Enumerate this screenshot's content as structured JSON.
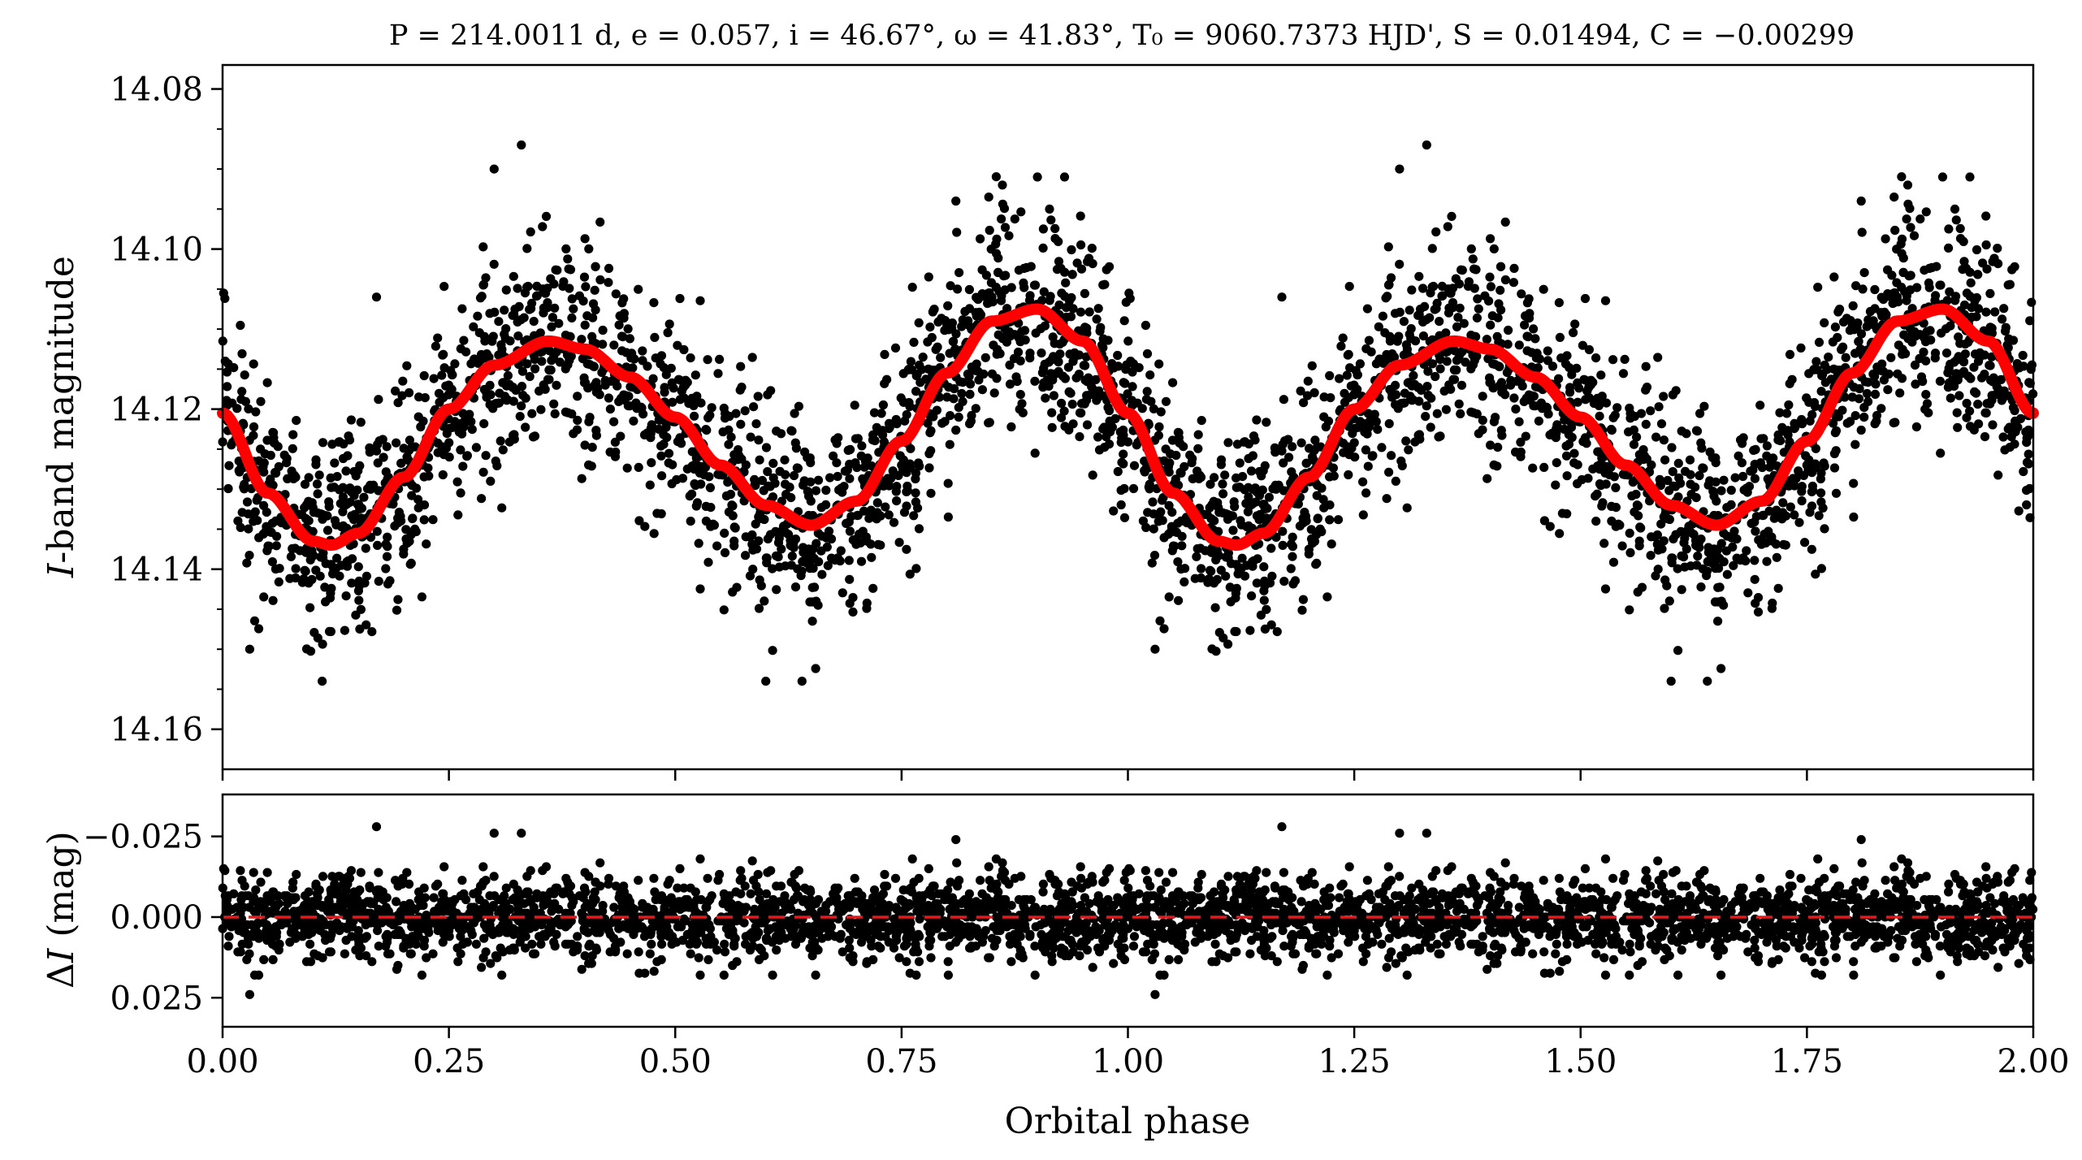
{
  "figure": {
    "title": "P = 214.0011 d, e = 0.057, i = 46.67°, ω = 41.83°, T₀ = 9060.7373 HJD', S = 0.01494, C = −0.00299",
    "xlabel": "Orbital phase",
    "top_ylabel_italic": "I",
    "top_ylabel_rest": "-band magnitude",
    "bottom_ylabel_prefix": "Δ",
    "bottom_ylabel_italic": "I",
    "bottom_ylabel_rest": " (mag)"
  },
  "colors": {
    "points": "#000000",
    "model": "#ff0000",
    "residual_zero": "#e31a1c",
    "axes": "#000000"
  },
  "chart_data": [
    {
      "type": "scatter",
      "panel": "light-curve",
      "ylabel": "I-band magnitude",
      "xlim": [
        0.0,
        2.0
      ],
      "ylim": [
        14.165,
        14.077
      ],
      "y_inverted": true,
      "x_ticks": [
        0.0,
        0.25,
        0.5,
        0.75,
        1.0,
        1.25,
        1.5,
        1.75,
        2.0
      ],
      "y_ticks": [
        14.08,
        14.1,
        14.12,
        14.14,
        14.16
      ],
      "y_tick_labels": [
        "14.08",
        "14.10",
        "14.12",
        "14.14",
        "14.16"
      ],
      "series": [
        {
          "kind": "observations",
          "x_range": [
            0.0,
            2.0
          ],
          "approx_points_per_cycle": 1800,
          "scatter_mag": 0.0065,
          "notable_outliers": [
            {
              "x": 0.3,
              "y": 14.09
            },
            {
              "x": 0.33,
              "y": 14.087
            },
            {
              "x": 0.17,
              "y": 14.106
            },
            {
              "x": 0.03,
              "y": 14.15
            },
            {
              "x": 0.11,
              "y": 14.154
            },
            {
              "x": 0.6,
              "y": 14.154
            },
            {
              "x": 0.64,
              "y": 14.154
            },
            {
              "x": 0.81,
              "y": 14.094
            },
            {
              "x": 0.9,
              "y": 14.091
            },
            {
              "x": 0.93,
              "y": 14.091
            },
            {
              "x": 1.03,
              "y": 14.15
            },
            {
              "x": 1.3,
              "y": 14.09
            },
            {
              "x": 1.33,
              "y": 14.087
            },
            {
              "x": 1.17,
              "y": 14.106
            },
            {
              "x": 1.6,
              "y": 14.154
            },
            {
              "x": 1.64,
              "y": 14.154
            },
            {
              "x": 1.81,
              "y": 14.094
            },
            {
              "x": 1.9,
              "y": 14.091
            },
            {
              "x": 1.93,
              "y": 14.091
            }
          ]
        },
        {
          "kind": "model",
          "x": [
            0.0,
            0.05,
            0.1,
            0.12,
            0.15,
            0.2,
            0.25,
            0.3,
            0.36,
            0.4,
            0.45,
            0.5,
            0.55,
            0.6,
            0.65,
            0.7,
            0.75,
            0.8,
            0.85,
            0.9,
            0.95,
            1.0
          ],
          "y": [
            14.1205,
            14.1305,
            14.1365,
            14.137,
            14.1355,
            14.1285,
            14.12,
            14.1145,
            14.1115,
            14.1125,
            14.116,
            14.121,
            14.127,
            14.132,
            14.1345,
            14.1315,
            14.124,
            14.1155,
            14.109,
            14.1075,
            14.1115,
            14.1205
          ]
        }
      ]
    },
    {
      "type": "scatter",
      "panel": "residuals",
      "ylabel": "ΔI (mag)",
      "xlabel": "Orbital phase",
      "xlim": [
        0.0,
        2.0
      ],
      "ylim": [
        0.034,
        -0.038
      ],
      "y_inverted": true,
      "x_ticks": [
        0.0,
        0.25,
        0.5,
        0.75,
        1.0,
        1.25,
        1.5,
        1.75,
        2.0
      ],
      "x_tick_labels": [
        "0.00",
        "0.25",
        "0.50",
        "0.75",
        "1.00",
        "1.25",
        "1.50",
        "1.75",
        "2.00"
      ],
      "y_ticks": [
        -0.025,
        0.0,
        0.025
      ],
      "y_tick_labels": [
        "−0.025",
        "0.000",
        "0.025"
      ],
      "reference_line": {
        "y": 0.0,
        "style": "dashed"
      },
      "series": [
        {
          "kind": "residuals",
          "x_range": [
            0.0,
            2.0
          ],
          "scatter_mag": 0.0065,
          "notable_outliers": [
            {
              "x": 0.17,
              "y": -0.028
            },
            {
              "x": 0.3,
              "y": -0.026
            },
            {
              "x": 0.33,
              "y": -0.026
            },
            {
              "x": 0.03,
              "y": 0.024
            },
            {
              "x": 1.17,
              "y": -0.028
            },
            {
              "x": 1.3,
              "y": -0.026
            },
            {
              "x": 1.33,
              "y": -0.026
            },
            {
              "x": 1.03,
              "y": 0.024
            },
            {
              "x": 0.81,
              "y": -0.024
            },
            {
              "x": 1.81,
              "y": -0.024
            }
          ]
        }
      ]
    }
  ]
}
